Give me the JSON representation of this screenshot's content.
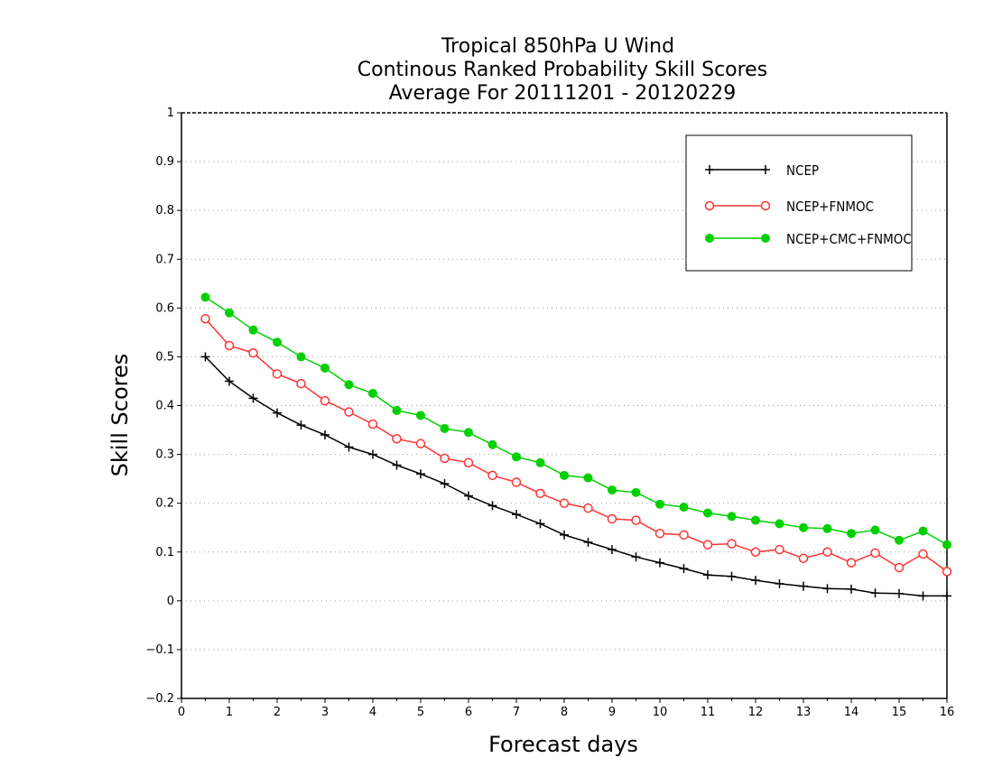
{
  "chart_data": {
    "type": "line",
    "title_lines": [
      "Tropical 850hPa U Wind",
      "Continous Ranked Probability Skill Scores",
      "Average For 20111201 - 20120229"
    ],
    "xlabel": "Forecast days",
    "ylabel": "Skill Scores",
    "xlim": [
      0,
      16
    ],
    "ylim": [
      -0.2,
      1
    ],
    "x_ticks": [
      "0",
      "1",
      "2",
      "3",
      "4",
      "5",
      "6",
      "7",
      "8",
      "9",
      "10",
      "11",
      "12",
      "13",
      "14",
      "15",
      "16"
    ],
    "y_ticks": [
      "−0.2",
      "−0.1",
      "0",
      "0.1",
      "0.2",
      "0.3",
      "0.4",
      "0.5",
      "0.6",
      "0.7",
      "0.8",
      "0.9",
      "1"
    ],
    "y_tick_values": [
      -0.2,
      -0.1,
      0,
      0.1,
      0.2,
      0.3,
      0.4,
      0.5,
      0.6,
      0.7,
      0.8,
      0.9,
      1
    ],
    "grid": "horizontal dotted",
    "legend_position": "top-right",
    "x": [
      0.5,
      1,
      1.5,
      2,
      2.5,
      3,
      3.5,
      4,
      4.5,
      5,
      5.5,
      6,
      6.5,
      7,
      7.5,
      8,
      8.5,
      9,
      9.5,
      10,
      10.5,
      11,
      11.5,
      12,
      12.5,
      13,
      13.5,
      14,
      14.5,
      15,
      15.5,
      16
    ],
    "series": [
      {
        "name": "NCEP",
        "color": "#000000",
        "marker": "plus",
        "values": [
          0.5,
          0.45,
          0.415,
          0.385,
          0.36,
          0.34,
          0.315,
          0.3,
          0.278,
          0.26,
          0.24,
          0.215,
          0.195,
          0.177,
          0.158,
          0.135,
          0.12,
          0.105,
          0.09,
          0.078,
          0.066,
          0.053,
          0.05,
          0.042,
          0.035,
          0.03,
          0.025,
          0.024,
          0.016,
          0.015,
          0.01,
          0.01
        ]
      },
      {
        "name": "NCEP+FNMOC",
        "color": "#ff3333",
        "marker": "open-circle",
        "values": [
          0.578,
          0.523,
          0.508,
          0.465,
          0.445,
          0.41,
          0.387,
          0.362,
          0.332,
          0.322,
          0.292,
          0.283,
          0.257,
          0.243,
          0.22,
          0.2,
          0.19,
          0.168,
          0.165,
          0.138,
          0.135,
          0.115,
          0.117,
          0.1,
          0.105,
          0.087,
          0.1,
          0.078,
          0.098,
          0.068,
          0.096,
          0.06
        ]
      },
      {
        "name": "NCEP+CMC+FNMOC",
        "color": "#00d000",
        "marker": "filled-circle",
        "values": [
          0.622,
          0.59,
          0.555,
          0.53,
          0.5,
          0.477,
          0.443,
          0.425,
          0.39,
          0.38,
          0.353,
          0.345,
          0.32,
          0.295,
          0.283,
          0.257,
          0.252,
          0.227,
          0.222,
          0.198,
          0.192,
          0.18,
          0.173,
          0.165,
          0.158,
          0.15,
          0.148,
          0.138,
          0.145,
          0.124,
          0.143,
          0.115
        ]
      }
    ]
  }
}
